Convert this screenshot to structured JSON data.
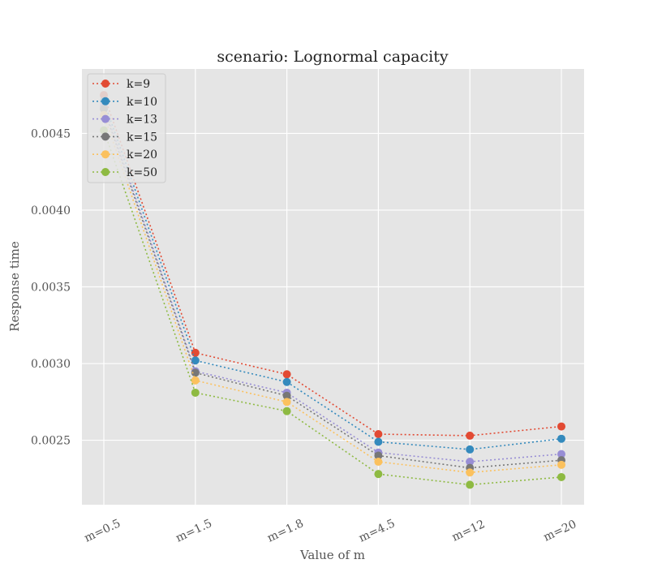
{
  "chart_data": {
    "type": "line",
    "title": "scenario: Lognormal capacity",
    "xlabel": "Value of m",
    "ylabel": "Response time",
    "categories": [
      "m=0.5",
      "m=1.5",
      "m=1.8",
      "m=4.5",
      "m=12",
      "m=20"
    ],
    "ylim": [
      0.00208,
      0.00492
    ],
    "yticks": [
      "0.0025",
      "0.0030",
      "0.0035",
      "0.0040",
      "0.0045"
    ],
    "grid": true,
    "legend_position": "top-left",
    "series": [
      {
        "name": "k=9",
        "color": "#E24A33",
        "values": [
          0.00475,
          0.00307,
          0.00293,
          0.00254,
          0.00253,
          0.00259
        ]
      },
      {
        "name": "k=10",
        "color": "#348ABD",
        "values": [
          0.00471,
          0.00302,
          0.00288,
          0.00249,
          0.00244,
          0.00251
        ]
      },
      {
        "name": "k=13",
        "color": "#988ED5",
        "values": [
          0.00468,
          0.00295,
          0.00281,
          0.00242,
          0.00236,
          0.00241
        ]
      },
      {
        "name": "k=15",
        "color": "#777777",
        "values": [
          0.00466,
          0.00294,
          0.00279,
          0.0024,
          0.00232,
          0.00237
        ]
      },
      {
        "name": "k=20",
        "color": "#FBC15E",
        "values": [
          0.00462,
          0.00289,
          0.00275,
          0.00236,
          0.00229,
          0.00234
        ]
      },
      {
        "name": "k=50",
        "color": "#8EBA42",
        "values": [
          0.00452,
          0.00281,
          0.00269,
          0.00228,
          0.00221,
          0.00226
        ]
      }
    ]
  }
}
